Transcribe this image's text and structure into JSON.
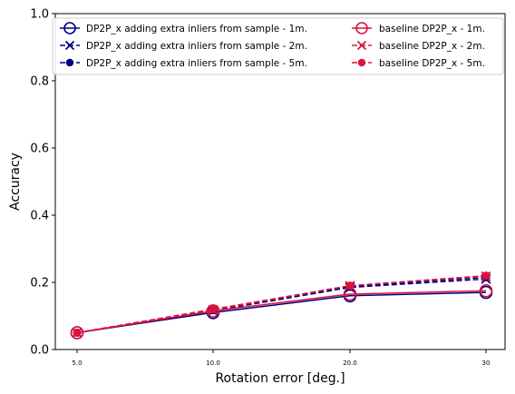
{
  "chart_data": {
    "type": "line",
    "title": "",
    "xlabel": "Rotation error [deg.]",
    "ylabel": "Accuracy",
    "x_tick_labels": [
      "5.0",
      "10.0",
      "20.0",
      "30"
    ],
    "y_ticks": [
      "0.0",
      "0.2",
      "0.4",
      "0.6",
      "0.8",
      "1.0"
    ],
    "ylim": [
      0,
      1.0
    ],
    "grid": false,
    "legend_position": "top",
    "series": [
      {
        "name": "DP2P_x adding extra inliers from sample - 1m.",
        "values": [
          0.05,
          0.11,
          0.16,
          0.17
        ],
        "color": "#000080",
        "marker": "open-circle",
        "line": "solid"
      },
      {
        "name": "DP2P_x adding extra inliers from sample - 2m.",
        "values": [
          0.05,
          0.115,
          0.185,
          0.21
        ],
        "color": "#000080",
        "marker": "x",
        "line": "dashed"
      },
      {
        "name": "DP2P_x adding extra inliers from sample - 5m.",
        "values": [
          0.05,
          0.117,
          0.187,
          0.215
        ],
        "color": "#000080",
        "marker": "filled-circle",
        "line": "dashed"
      },
      {
        "name": "baseline DP2P_x - 1m.",
        "values": [
          0.05,
          0.115,
          0.165,
          0.175
        ],
        "color": "#dc143c",
        "marker": "open-circle",
        "line": "solid"
      },
      {
        "name": "baseline DP2P_x - 2m.",
        "values": [
          0.05,
          0.118,
          0.19,
          0.218
        ],
        "color": "#dc143c",
        "marker": "x",
        "line": "dashed"
      },
      {
        "name": "baseline DP2P_x - 5m.",
        "values": [
          0.05,
          0.12,
          0.19,
          0.22
        ],
        "color": "#dc143c",
        "marker": "filled-circle",
        "line": "dashed"
      }
    ]
  }
}
